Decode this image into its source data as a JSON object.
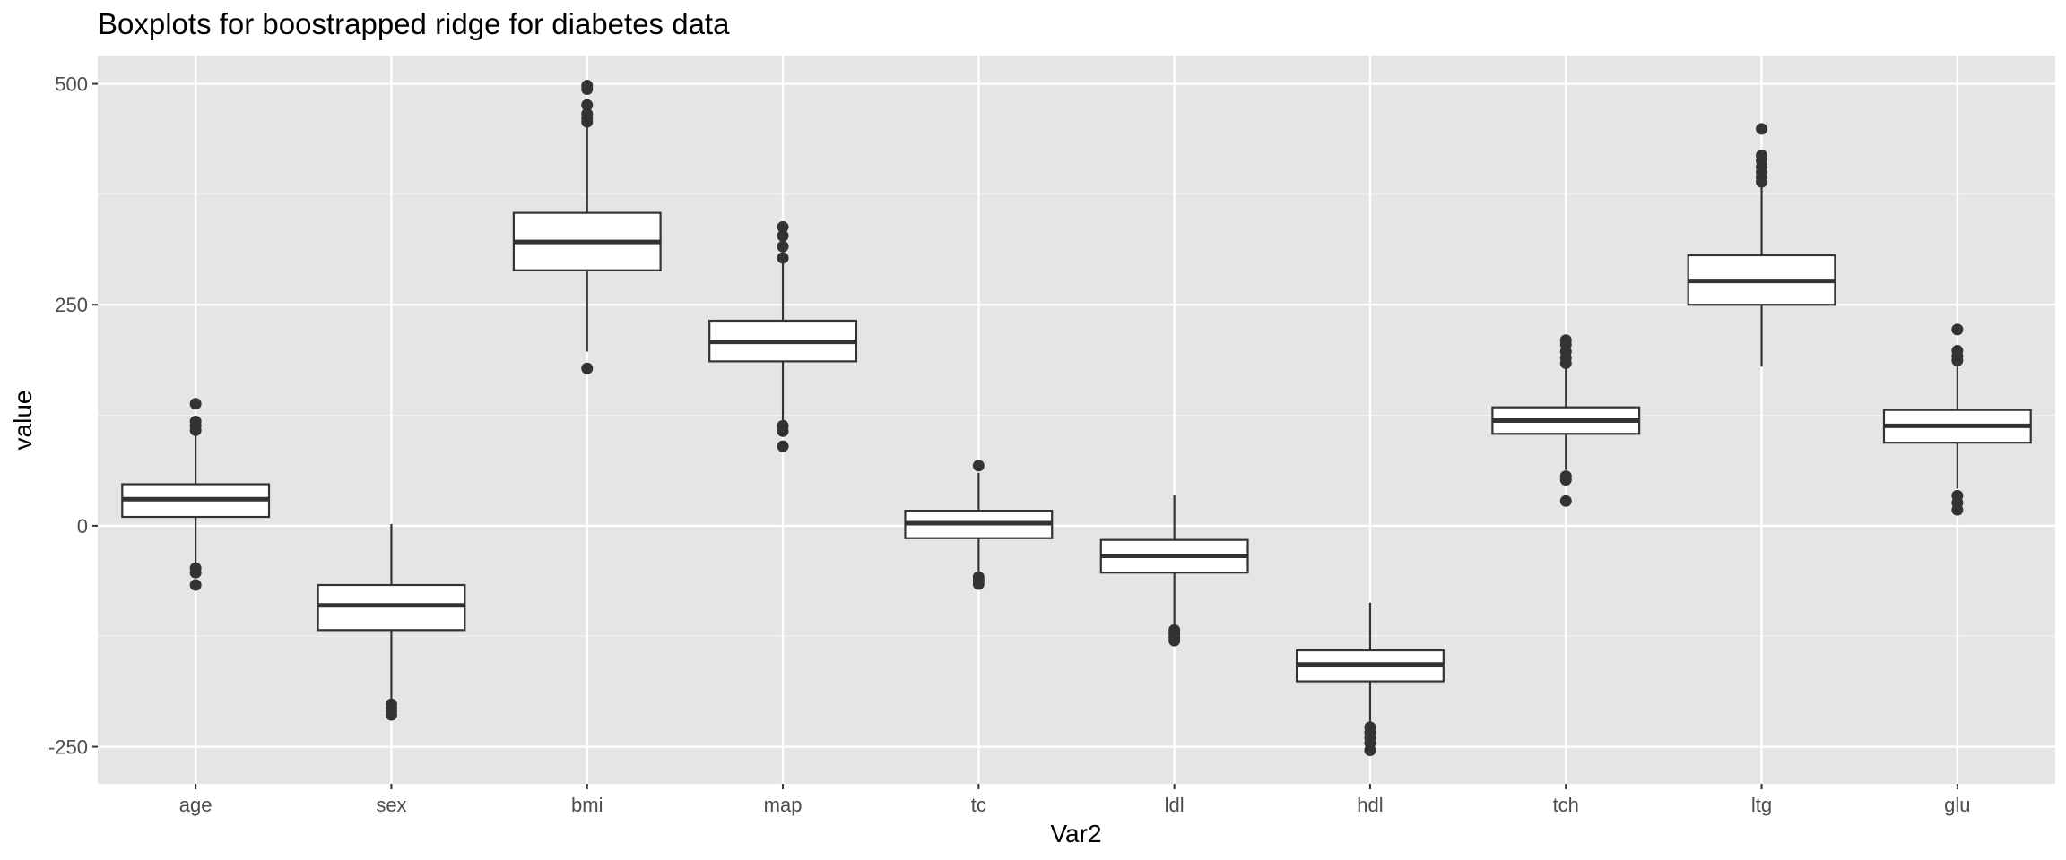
{
  "chart_data": {
    "type": "boxplot",
    "title": "Boxplots for boostrapped ridge for diabetes data",
    "xlabel": "Var2",
    "ylabel": "value",
    "ylim": [
      -292,
      532
    ],
    "yticks": [
      -250,
      0,
      250,
      500
    ],
    "ytick_labels": [
      "-250",
      "0",
      "250",
      "500"
    ],
    "grid": true,
    "colors": {
      "panel": "#E5E5E5",
      "grid_major": "#FFFFFF",
      "grid_minor": "#F2F2F2",
      "box_fill": "#FFFFFF",
      "box_line": "#333333"
    },
    "categories": [
      "age",
      "sex",
      "bmi",
      "map",
      "tc",
      "ldl",
      "hdl",
      "tch",
      "ltg",
      "glu"
    ],
    "boxes": [
      {
        "category": "age",
        "min": -53,
        "q1": 10,
        "median": 30,
        "q3": 47,
        "max": 102,
        "outliers": [
          138,
          118,
          113,
          108,
          -48,
          -53,
          -67
        ]
      },
      {
        "category": "sex",
        "min": -200,
        "q1": -118,
        "median": -90,
        "q3": -67,
        "max": 2,
        "outliers": [
          -202,
          -206,
          -210,
          -214
        ]
      },
      {
        "category": "bmi",
        "min": 197,
        "q1": 289,
        "median": 321,
        "q3": 354,
        "max": 457,
        "outliers": [
          498,
          494,
          476,
          466,
          461,
          457,
          178
        ]
      },
      {
        "category": "map",
        "min": 117,
        "q1": 186,
        "median": 208,
        "q3": 232,
        "max": 297,
        "outliers": [
          338,
          328,
          316,
          303,
          113,
          107,
          90
        ]
      },
      {
        "category": "tc",
        "min": -55,
        "q1": -14,
        "median": 3,
        "q3": 17,
        "max": 60,
        "outliers": [
          68,
          -58,
          -62,
          -66
        ]
      },
      {
        "category": "ldl",
        "min": -112,
        "q1": -53,
        "median": -34,
        "q3": -16,
        "max": 35,
        "outliers": [
          -118,
          -122,
          -126,
          -130
        ]
      },
      {
        "category": "hdl",
        "min": -225,
        "q1": -176,
        "median": -157,
        "q3": -141,
        "max": -87,
        "outliers": [
          -228,
          -234,
          -240,
          -246,
          -254
        ]
      },
      {
        "category": "tch",
        "min": 63,
        "q1": 104,
        "median": 119,
        "q3": 134,
        "max": 178,
        "outliers": [
          210,
          205,
          197,
          190,
          184,
          56,
          52,
          28
        ]
      },
      {
        "category": "ltg",
        "min": 180,
        "q1": 250,
        "median": 277,
        "q3": 306,
        "max": 385,
        "outliers": [
          449,
          419,
          413,
          406,
          400,
          394,
          389
        ]
      },
      {
        "category": "glu",
        "min": 42,
        "q1": 94,
        "median": 113,
        "q3": 131,
        "max": 185,
        "outliers": [
          222,
          198,
          192,
          187,
          34,
          26,
          18
        ]
      }
    ]
  }
}
